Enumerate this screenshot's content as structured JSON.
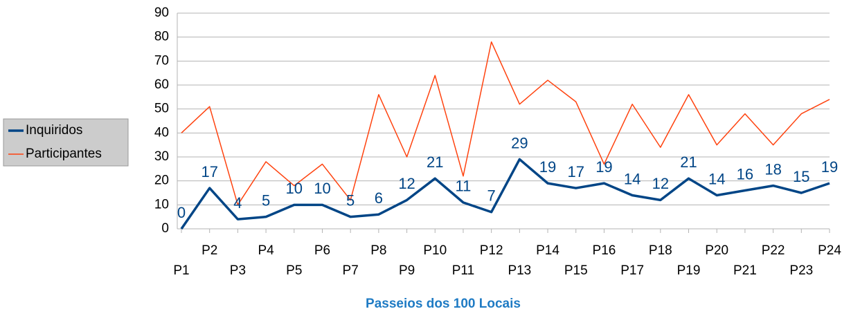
{
  "chart_data": {
    "type": "line",
    "x_label": "Passeios dos 100 Locais",
    "categories": [
      "P1",
      "P2",
      "P3",
      "P4",
      "P5",
      "P6",
      "P7",
      "P8",
      "P9",
      "P10",
      "P11",
      "P12",
      "P13",
      "P14",
      "P15",
      "P16",
      "P17",
      "P18",
      "P19",
      "P20",
      "P21",
      "P22",
      "P23",
      "P24"
    ],
    "series": [
      {
        "name": "Inquiridos",
        "color": "#004586",
        "data_labels": true,
        "values": [
          0,
          17,
          4,
          5,
          10,
          10,
          5,
          6,
          12,
          21,
          11,
          7,
          29,
          19,
          17,
          19,
          14,
          12,
          21,
          14,
          16,
          18,
          15,
          19
        ]
      },
      {
        "name": "Participantes",
        "color": "#ff420e",
        "data_labels": false,
        "values": [
          40,
          51,
          10,
          28,
          18,
          27,
          12,
          56,
          30,
          64,
          22,
          78,
          52,
          62,
          53,
          27,
          52,
          34,
          56,
          35,
          48,
          35,
          48,
          54
        ]
      }
    ],
    "ylim": [
      0,
      90
    ],
    "yticks": [
      0,
      10,
      20,
      30,
      40,
      50,
      60,
      70,
      80,
      90
    ],
    "grid": true,
    "legend": "left"
  }
}
